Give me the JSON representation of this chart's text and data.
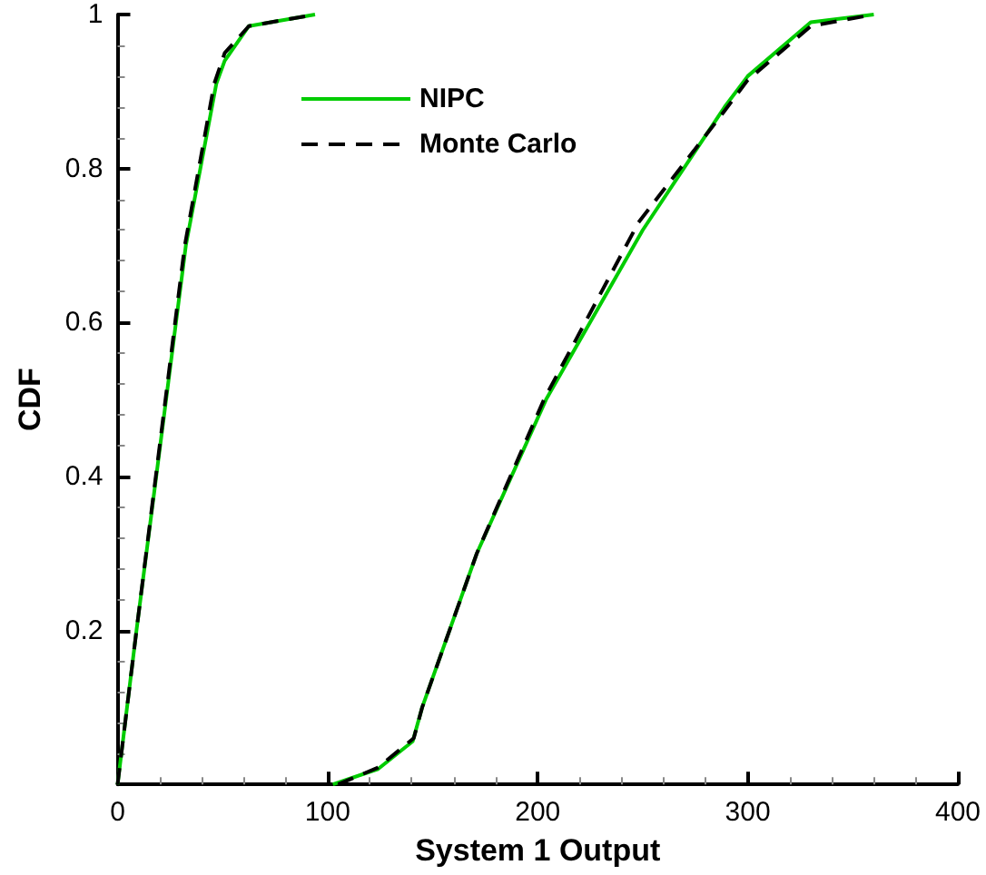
{
  "chart_data": {
    "type": "line",
    "xlabel": "System 1 Output",
    "ylabel": "CDF",
    "xlim": [
      0,
      400
    ],
    "xticks": [
      0,
      100,
      200,
      300,
      400
    ],
    "ylim": [
      0,
      1
    ],
    "yticks": [
      {
        "value": 0,
        "label": null
      },
      0.2,
      0.4,
      0.6,
      0.8,
      1
    ],
    "grid": false,
    "legend": "top",
    "marker": "none",
    "series": [
      {
        "name": "NIPC",
        "color": "#00cc00",
        "line_style": "solid",
        "x": [
          0,
          9,
          32.5,
          47,
          51,
          62.5,
          94,
          null,
          102.5,
          124,
          140.5,
          145,
          171,
          204,
          250,
          289,
          300,
          330,
          360
        ],
        "values": [
          0,
          0.2,
          0.7,
          0.91,
          0.94,
          0.985,
          1,
          null,
          0,
          0.02,
          0.056,
          0.1,
          0.3,
          0.5,
          0.72,
          0.88,
          0.92,
          0.99,
          1
        ]
      },
      {
        "name": "Monte Carlo",
        "color": "#000000",
        "line_style": "dashed",
        "x": [
          0,
          9,
          32,
          46,
          51,
          62.5,
          94,
          null,
          105,
          124,
          141,
          145,
          171,
          203,
          248,
          289,
          300,
          330,
          360
        ],
        "values": [
          0,
          0.2,
          0.7,
          0.91,
          0.95,
          0.985,
          1,
          null,
          0,
          0.022,
          0.06,
          0.1,
          0.3,
          0.5,
          0.73,
          0.875,
          0.915,
          0.985,
          1
        ]
      }
    ]
  }
}
